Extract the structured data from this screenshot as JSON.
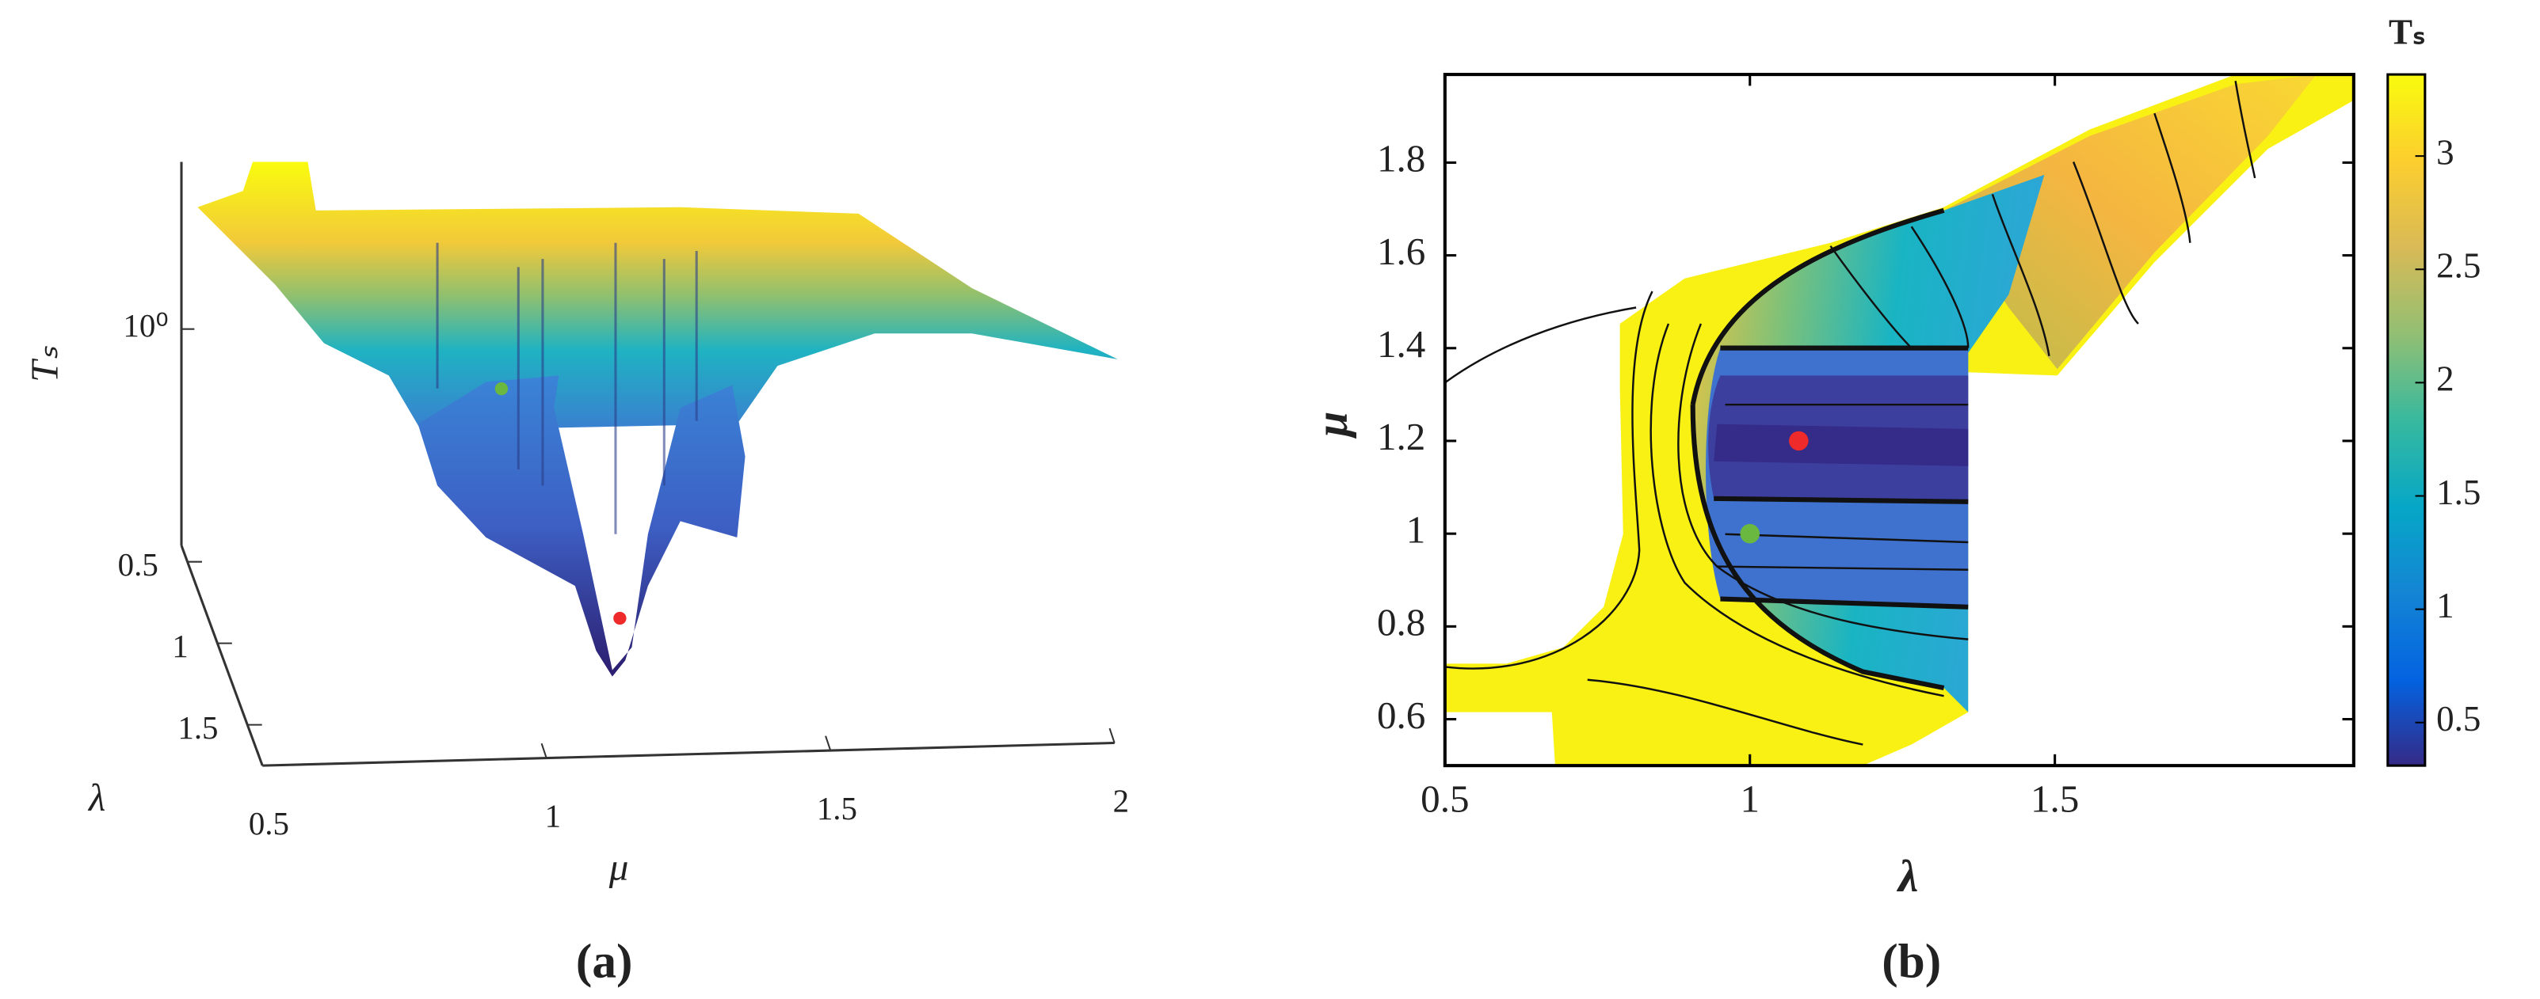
{
  "chart_data": [
    {
      "type": "surface3d",
      "caption": "(a)",
      "xlabel": "μ",
      "ylabel": "λ",
      "zlabel": "Tₛ",
      "xlim": [
        0.5,
        2
      ],
      "xticks": [
        0.5,
        1,
        1.5,
        2
      ],
      "ylim": [
        0.4,
        1.75
      ],
      "yticks": [
        0.5,
        1,
        1.5
      ],
      "zscale": "log",
      "zlim": [
        0.35,
        2.25
      ],
      "zticks": [
        {
          "value": 1,
          "label": "10⁰"
        }
      ],
      "points": [
        {
          "x": 1.2,
          "y": 1.08,
          "z": 0.4,
          "color": "#ee2a2a"
        },
        {
          "x": 1,
          "y": 1,
          "z": 1.16,
          "color": "#6ab83f"
        }
      ]
    },
    {
      "type": "contour",
      "caption": "(b)",
      "xlabel": "λ",
      "ylabel": "μ",
      "xlim": [
        0.5,
        1.99
      ],
      "xticks": [
        0.5,
        1,
        1.5
      ],
      "ylim": [
        0.5,
        1.99
      ],
      "yticks": [
        0.6,
        0.8,
        1,
        1.2,
        1.4,
        1.6,
        1.8
      ],
      "colorbar": {
        "title": "Tₛ",
        "lim": [
          0.31,
          3.36
        ],
        "ticks": [
          0.5,
          1,
          1.5,
          2,
          2.5,
          3
        ],
        "colormap": "parula"
      },
      "points": [
        {
          "x": 1.08,
          "y": 1.2,
          "color": "#ee2a2a"
        },
        {
          "x": 1,
          "y": 1,
          "color": "#6ab83f"
        }
      ]
    }
  ]
}
